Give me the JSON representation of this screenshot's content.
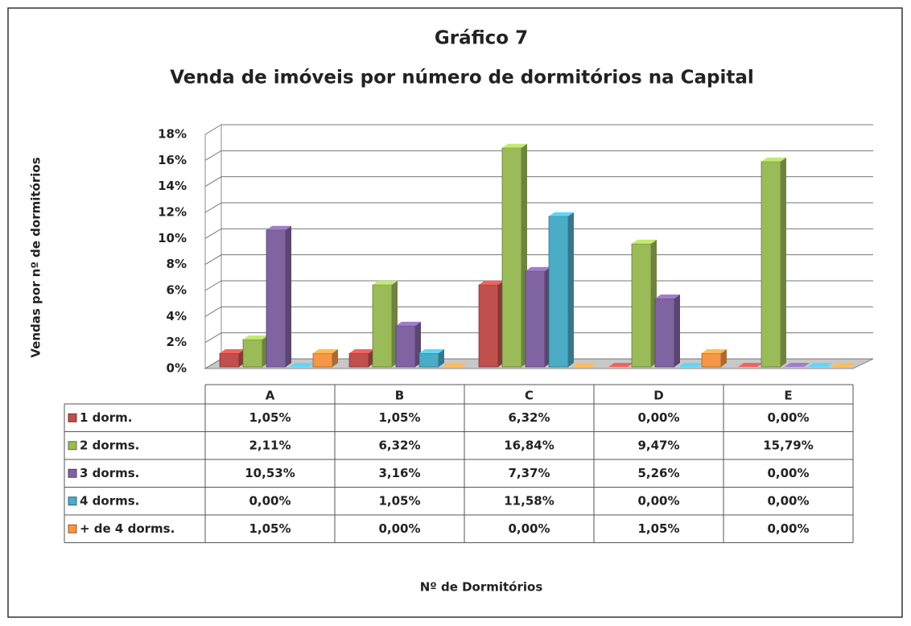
{
  "chart_data": {
    "type": "bar3d",
    "title": "Gráfico 7",
    "subtitle": "Venda de imóveis por número de dormitórios na Capital",
    "y_label": "Vendas por nº de dormitórios",
    "x_label": "Nº de Dormitórios",
    "categories": [
      "A",
      "B",
      "C",
      "D",
      "E"
    ],
    "series": [
      {
        "name": "1 dorm.",
        "color": "#c0504d",
        "values": [
          1.05,
          1.05,
          6.32,
          0.0,
          0.0
        ],
        "value_labels": [
          "1,05%",
          "1,05%",
          "6,32%",
          "0,00%",
          "0,00%"
        ]
      },
      {
        "name": "2 dorms.",
        "color": "#9bbb59",
        "values": [
          2.11,
          6.32,
          16.84,
          9.47,
          15.79
        ],
        "value_labels": [
          "2,11%",
          "6,32%",
          "16,84%",
          "9,47%",
          "15,79%"
        ]
      },
      {
        "name": "3 dorms.",
        "color": "#8064a2",
        "values": [
          10.53,
          3.16,
          7.37,
          5.26,
          0.0
        ],
        "value_labels": [
          "10,53%",
          "3,16%",
          "7,37%",
          "5,26%",
          "0,00%"
        ]
      },
      {
        "name": "4 dorms.",
        "color": "#4bacc6",
        "values": [
          0.0,
          1.05,
          11.58,
          0.0,
          0.0
        ],
        "value_labels": [
          "0,00%",
          "1,05%",
          "11,58%",
          "0,00%",
          "0,00%"
        ]
      },
      {
        "name": "+ de 4 dorms.",
        "color": "#f79646",
        "values": [
          1.05,
          0.0,
          0.0,
          1.05,
          0.0
        ],
        "value_labels": [
          "1,05%",
          "0,00%",
          "0,00%",
          "1,05%",
          "0,00%"
        ]
      }
    ],
    "ylim": [
      0,
      18
    ],
    "yticks": [
      {
        "value": 0,
        "label": "0%"
      },
      {
        "value": 2,
        "label": "2%"
      },
      {
        "value": 4,
        "label": "4%"
      },
      {
        "value": 6,
        "label": "6%"
      },
      {
        "value": 8,
        "label": "8%"
      },
      {
        "value": 10,
        "label": "10%"
      },
      {
        "value": 12,
        "label": "12%"
      },
      {
        "value": 14,
        "label": "14%"
      },
      {
        "value": 16,
        "label": "16%"
      },
      {
        "value": 18,
        "label": "18%"
      }
    ],
    "grid": true
  }
}
